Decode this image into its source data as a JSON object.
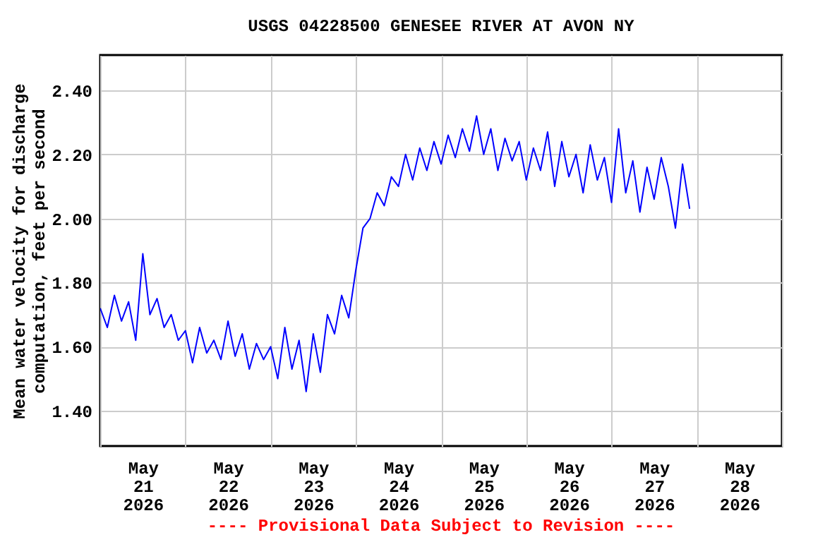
{
  "chart_data": {
    "type": "line",
    "title": "USGS 04228500 GENESEE RIVER AT AVON NY",
    "ylabel": "Mean water velocity for discharge computation, feet per second",
    "annotations": [
      "---- Provisional Data Subject to Revision ----"
    ],
    "x": [
      "2026-05-21T00:00",
      "2026-05-21T02:00",
      "2026-05-21T04:00",
      "2026-05-21T06:00",
      "2026-05-21T08:00",
      "2026-05-21T10:00",
      "2026-05-21T12:00",
      "2026-05-21T14:00",
      "2026-05-21T16:00",
      "2026-05-21T18:00",
      "2026-05-21T20:00",
      "2026-05-21T22:00",
      "2026-05-22T00:00",
      "2026-05-22T02:00",
      "2026-05-22T04:00",
      "2026-05-22T06:00",
      "2026-05-22T08:00",
      "2026-05-22T10:00",
      "2026-05-22T12:00",
      "2026-05-22T14:00",
      "2026-05-22T16:00",
      "2026-05-22T18:00",
      "2026-05-22T20:00",
      "2026-05-22T22:00",
      "2026-05-23T00:00",
      "2026-05-23T02:00",
      "2026-05-23T04:00",
      "2026-05-23T06:00",
      "2026-05-23T08:00",
      "2026-05-23T10:00",
      "2026-05-23T12:00",
      "2026-05-23T14:00",
      "2026-05-23T16:00",
      "2026-05-23T18:00",
      "2026-05-23T20:00",
      "2026-05-23T22:00",
      "2026-05-24T00:00",
      "2026-05-24T02:00",
      "2026-05-24T04:00",
      "2026-05-24T06:00",
      "2026-05-24T08:00",
      "2026-05-24T10:00",
      "2026-05-24T12:00",
      "2026-05-24T14:00",
      "2026-05-24T16:00",
      "2026-05-24T18:00",
      "2026-05-24T20:00",
      "2026-05-24T22:00",
      "2026-05-25T00:00",
      "2026-05-25T02:00",
      "2026-05-25T04:00",
      "2026-05-25T06:00",
      "2026-05-25T08:00",
      "2026-05-25T10:00",
      "2026-05-25T12:00",
      "2026-05-25T14:00",
      "2026-05-25T16:00",
      "2026-05-25T18:00",
      "2026-05-25T20:00",
      "2026-05-25T22:00",
      "2026-05-26T00:00",
      "2026-05-26T02:00",
      "2026-05-26T04:00",
      "2026-05-26T06:00",
      "2026-05-26T08:00",
      "2026-05-26T10:00",
      "2026-05-26T12:00",
      "2026-05-26T14:00",
      "2026-05-26T16:00",
      "2026-05-26T18:00",
      "2026-05-26T20:00",
      "2026-05-26T22:00",
      "2026-05-27T00:00",
      "2026-05-27T02:00",
      "2026-05-27T04:00",
      "2026-05-27T06:00",
      "2026-05-27T08:00",
      "2026-05-27T10:00",
      "2026-05-27T12:00",
      "2026-05-27T14:00",
      "2026-05-27T16:00",
      "2026-05-27T18:00",
      "2026-05-27T20:00",
      "2026-05-27T22:00"
    ],
    "series": [
      {
        "color": "#0000ff",
        "values": [
          1.72,
          1.66,
          1.76,
          1.68,
          1.74,
          1.62,
          1.89,
          1.7,
          1.75,
          1.66,
          1.7,
          1.62,
          1.65,
          1.55,
          1.66,
          1.58,
          1.62,
          1.56,
          1.68,
          1.57,
          1.64,
          1.53,
          1.61,
          1.56,
          1.6,
          1.5,
          1.66,
          1.53,
          1.62,
          1.46,
          1.64,
          1.52,
          1.7,
          1.64,
          1.76,
          1.69,
          1.84,
          1.97,
          2.0,
          2.08,
          2.04,
          2.13,
          2.1,
          2.2,
          2.12,
          2.22,
          2.15,
          2.24,
          2.17,
          2.26,
          2.19,
          2.28,
          2.21,
          2.32,
          2.2,
          2.28,
          2.15,
          2.25,
          2.18,
          2.24,
          2.12,
          2.22,
          2.15,
          2.27,
          2.1,
          2.24,
          2.13,
          2.2,
          2.08,
          2.23,
          2.12,
          2.19,
          2.05,
          2.28,
          2.08,
          2.18,
          2.02,
          2.16,
          2.06,
          2.19,
          2.1,
          1.97,
          2.17,
          2.03
        ]
      }
    ],
    "xlim": [
      "2026-05-21T00:00",
      "2026-05-29T00:00"
    ],
    "xticks": [
      {
        "value": "2026-05-21T00:00",
        "label": null
      },
      {
        "value": "2026-05-21T12:00",
        "label": "May 21 2026"
      },
      {
        "value": "2026-05-22T00:00",
        "label": null
      },
      {
        "value": "2026-05-22T12:00",
        "label": "May 22 2026"
      },
      {
        "value": "2026-05-23T00:00",
        "label": null
      },
      {
        "value": "2026-05-23T12:00",
        "label": "May 23 2026"
      },
      {
        "value": "2026-05-24T00:00",
        "label": null
      },
      {
        "value": "2026-05-24T12:00",
        "label": "May 24 2026"
      },
      {
        "value": "2026-05-25T00:00",
        "label": null
      },
      {
        "value": "2026-05-25T12:00",
        "label": "May 25 2026"
      },
      {
        "value": "2026-05-26T00:00",
        "label": null
      },
      {
        "value": "2026-05-26T12:00",
        "label": "May 26 2026"
      },
      {
        "value": "2026-05-27T00:00",
        "label": null
      },
      {
        "value": "2026-05-27T12:00",
        "label": "May 27 2026"
      },
      {
        "value": "2026-05-28T00:00",
        "label": null
      },
      {
        "value": "2026-05-28T12:00",
        "label": "May 28 2026"
      },
      {
        "value": "2026-05-29T00:00",
        "label": null
      }
    ],
    "ylim": [
      1.29,
      2.51
    ],
    "yticks": [
      {
        "value": 1.4,
        "label": "1.40"
      },
      {
        "value": 1.6,
        "label": "1.60"
      },
      {
        "value": 1.8,
        "label": "1.80"
      },
      {
        "value": 2.0,
        "label": "2.00"
      },
      {
        "value": 2.2,
        "label": "2.20"
      },
      {
        "value": 2.4,
        "label": "2.40"
      }
    ],
    "grid": true,
    "line_style": "solid"
  }
}
